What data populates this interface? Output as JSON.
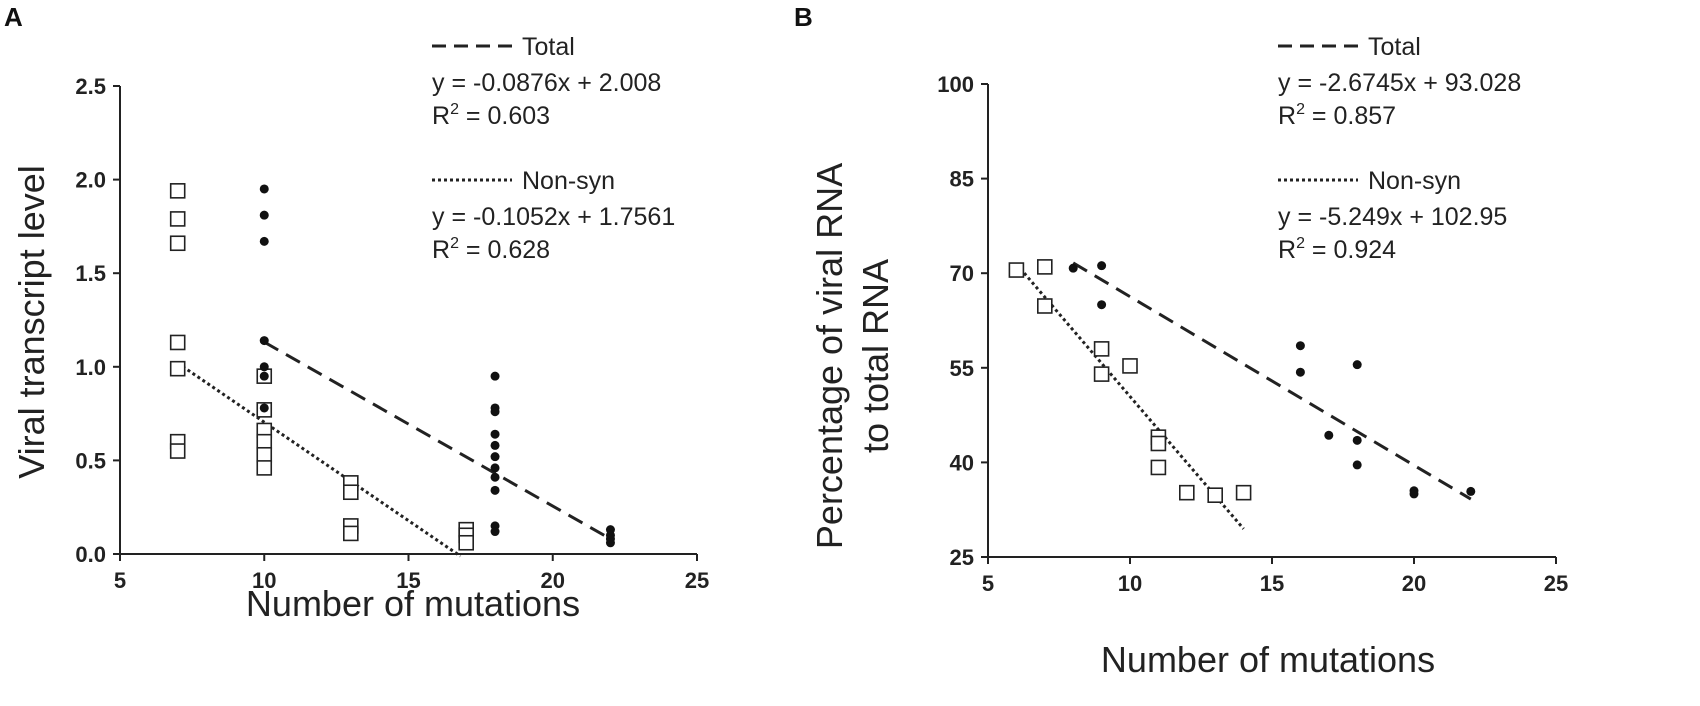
{
  "chart_data": [
    {
      "type": "scatter",
      "panel_label": "A",
      "xlabel": "Number of mutations",
      "ylabel": "Viral transcript level",
      "xlim": [
        5,
        25
      ],
      "ylim": [
        0,
        2.5
      ],
      "xticks": [
        5,
        10,
        15,
        20,
        25
      ],
      "yticks": [
        "0.0",
        "0.5",
        "1.0",
        "1.5",
        "2.0",
        "2.5"
      ],
      "series": [
        {
          "name": "Non-syn",
          "marker": "open-square",
          "points": [
            [
              7,
              1.94
            ],
            [
              7,
              1.79
            ],
            [
              7,
              1.66
            ],
            [
              7,
              1.13
            ],
            [
              7,
              0.99
            ],
            [
              7,
              0.6
            ],
            [
              7,
              0.55
            ],
            [
              10,
              0.95
            ],
            [
              10,
              0.77
            ],
            [
              10,
              0.66
            ],
            [
              10,
              0.6
            ],
            [
              10,
              0.53
            ],
            [
              10,
              0.46
            ],
            [
              13,
              0.38
            ],
            [
              13,
              0.33
            ],
            [
              13,
              0.15
            ],
            [
              13,
              0.11
            ],
            [
              17,
              0.13
            ],
            [
              17,
              0.1
            ],
            [
              17,
              0.06
            ]
          ]
        },
        {
          "name": "Total",
          "marker": "filled-circle",
          "points": [
            [
              10,
              1.95
            ],
            [
              10,
              1.81
            ],
            [
              10,
              1.67
            ],
            [
              10,
              1.14
            ],
            [
              10,
              1.0
            ],
            [
              10,
              0.95
            ],
            [
              10,
              0.78
            ],
            [
              18,
              0.95
            ],
            [
              18,
              0.78
            ],
            [
              18,
              0.76
            ],
            [
              18,
              0.64
            ],
            [
              18,
              0.58
            ],
            [
              18,
              0.52
            ],
            [
              18,
              0.46
            ],
            [
              18,
              0.41
            ],
            [
              18,
              0.34
            ],
            [
              18,
              0.15
            ],
            [
              18,
              0.12
            ],
            [
              22,
              0.13
            ],
            [
              22,
              0.1
            ],
            [
              22,
              0.08
            ],
            [
              22,
              0.06
            ]
          ]
        }
      ],
      "trendlines": [
        {
          "name": "Total",
          "style": "dashed",
          "slope": -0.0876,
          "intercept": 2.008,
          "x_range": [
            10,
            22
          ]
        },
        {
          "name": "Non-syn",
          "style": "dotted",
          "slope": -0.1052,
          "intercept": 1.7561,
          "x_range": [
            7,
            16.8
          ]
        }
      ],
      "legend": {
        "total_label": "Total",
        "total_eq": "y = -0.0876x + 2.008",
        "total_r2": "0.603",
        "nonsyn_label": "Non-syn",
        "nonsyn_eq": "y = -0.1052x + 1.7561",
        "nonsyn_r2": "0.628"
      }
    },
    {
      "type": "scatter",
      "panel_label": "B",
      "xlabel": "Number of mutations",
      "ylabel": [
        "Percentage of viral RNA",
        "to total RNA"
      ],
      "xlim": [
        5,
        25
      ],
      "ylim": [
        25,
        100
      ],
      "xticks": [
        5,
        10,
        15,
        20,
        25
      ],
      "yticks": [
        "25",
        "40",
        "55",
        "70",
        "85",
        "100"
      ],
      "series": [
        {
          "name": "Non-syn",
          "marker": "open-square",
          "points": [
            [
              6,
              70.5
            ],
            [
              7,
              71
            ],
            [
              7,
              64.8
            ],
            [
              9,
              58
            ],
            [
              9,
              54
            ],
            [
              10,
              55.3
            ],
            [
              11,
              44
            ],
            [
              11,
              43
            ],
            [
              11,
              39.2
            ],
            [
              12,
              35.2
            ],
            [
              13,
              34.8
            ],
            [
              14,
              35.2
            ]
          ]
        },
        {
          "name": "Total",
          "marker": "filled-circle",
          "points": [
            [
              8,
              70.8
            ],
            [
              9,
              71.2
            ],
            [
              9,
              65
            ],
            [
              16,
              58.5
            ],
            [
              16,
              54.3
            ],
            [
              17,
              44.3
            ],
            [
              18,
              55.5
            ],
            [
              18,
              43.5
            ],
            [
              18,
              39.6
            ],
            [
              20,
              35.5
            ],
            [
              20,
              35
            ],
            [
              22,
              35.4
            ]
          ]
        }
      ],
      "trendlines": [
        {
          "name": "Total",
          "style": "dashed",
          "slope": -2.6745,
          "intercept": 93.028,
          "x_range": [
            8,
            22
          ]
        },
        {
          "name": "Non-syn",
          "style": "dotted",
          "slope": -5.249,
          "intercept": 102.95,
          "x_range": [
            6,
            14
          ]
        }
      ],
      "legend": {
        "total_label": "Total",
        "total_eq": "y = -2.6745x + 93.028",
        "total_r2": "0.857",
        "nonsyn_label": "Non-syn",
        "nonsyn_eq": "y = -5.249x + 102.95",
        "nonsyn_r2": "0.924"
      }
    }
  ]
}
